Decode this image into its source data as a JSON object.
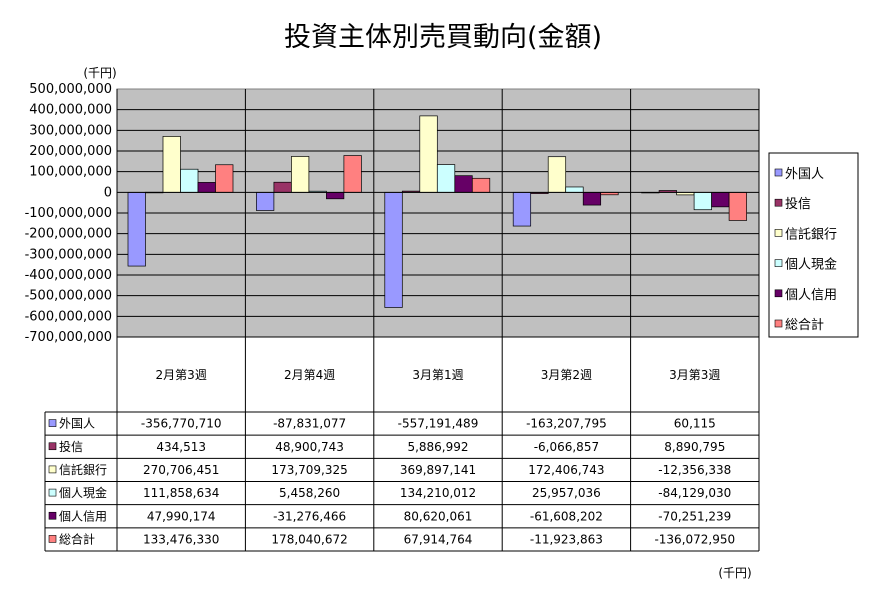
{
  "chart_data": {
    "type": "bar",
    "title": "投資主体別売買動向(金額)",
    "y_unit_label": "(千円)",
    "table_unit_label": "(千円)",
    "ylim": [
      -700000000,
      500000000
    ],
    "yticks": [
      500000000,
      400000000,
      300000000,
      200000000,
      100000000,
      0,
      -100000000,
      -200000000,
      -300000000,
      -400000000,
      -500000000,
      -600000000,
      -700000000
    ],
    "ytick_labels": [
      "500,000,000",
      "400,000,000",
      "300,000,000",
      "200,000,000",
      "100,000,000",
      "0",
      "-100,000,000",
      "-200,000,000",
      "-300,000,000",
      "-400,000,000",
      "-500,000,000",
      "-600,000,000",
      "-700,000,000"
    ],
    "grid": true,
    "legend_position": "right",
    "categories": [
      "2月第3週",
      "2月第4週",
      "3月第1週",
      "3月第2週",
      "3月第3週"
    ],
    "series": [
      {
        "name": "外国人",
        "color": "#9999ff",
        "values": [
          -356770710,
          -87831077,
          -557191489,
          -163207795,
          60115
        ],
        "labels": [
          "-356,770,710",
          "-87,831,077",
          "-557,191,489",
          "-163,207,795",
          "60,115"
        ]
      },
      {
        "name": "投信",
        "color": "#993366",
        "values": [
          434513,
          48900743,
          5886992,
          -6066857,
          8890795
        ],
        "labels": [
          "434,513",
          "48,900,743",
          "5,886,992",
          "-6,066,857",
          "8,890,795"
        ]
      },
      {
        "name": "信託銀行",
        "color": "#ffffcc",
        "values": [
          270706451,
          173709325,
          369897141,
          172406743,
          -12356338
        ],
        "labels": [
          "270,706,451",
          "173,709,325",
          "369,897,141",
          "172,406,743",
          "-12,356,338"
        ]
      },
      {
        "name": "個人現金",
        "color": "#ccffff",
        "values": [
          111858634,
          5458260,
          134210012,
          25957036,
          -84129030
        ],
        "labels": [
          "111,858,634",
          "5,458,260",
          "134,210,012",
          "25,957,036",
          "-84,129,030"
        ]
      },
      {
        "name": "個人信用",
        "color": "#660066",
        "values": [
          47990174,
          -31276466,
          80620061,
          -61608202,
          -70251239
        ],
        "labels": [
          "47,990,174",
          "-31,276,466",
          "80,620,061",
          "-61,608,202",
          "-70,251,239"
        ]
      },
      {
        "name": "総合計",
        "color": "#ff8080",
        "values": [
          133476330,
          178040672,
          67914764,
          -11923863,
          -136072950
        ],
        "labels": [
          "133,476,330",
          "178,040,672",
          "67,914,764",
          "-11,923,863",
          "-136,072,950"
        ]
      }
    ]
  }
}
